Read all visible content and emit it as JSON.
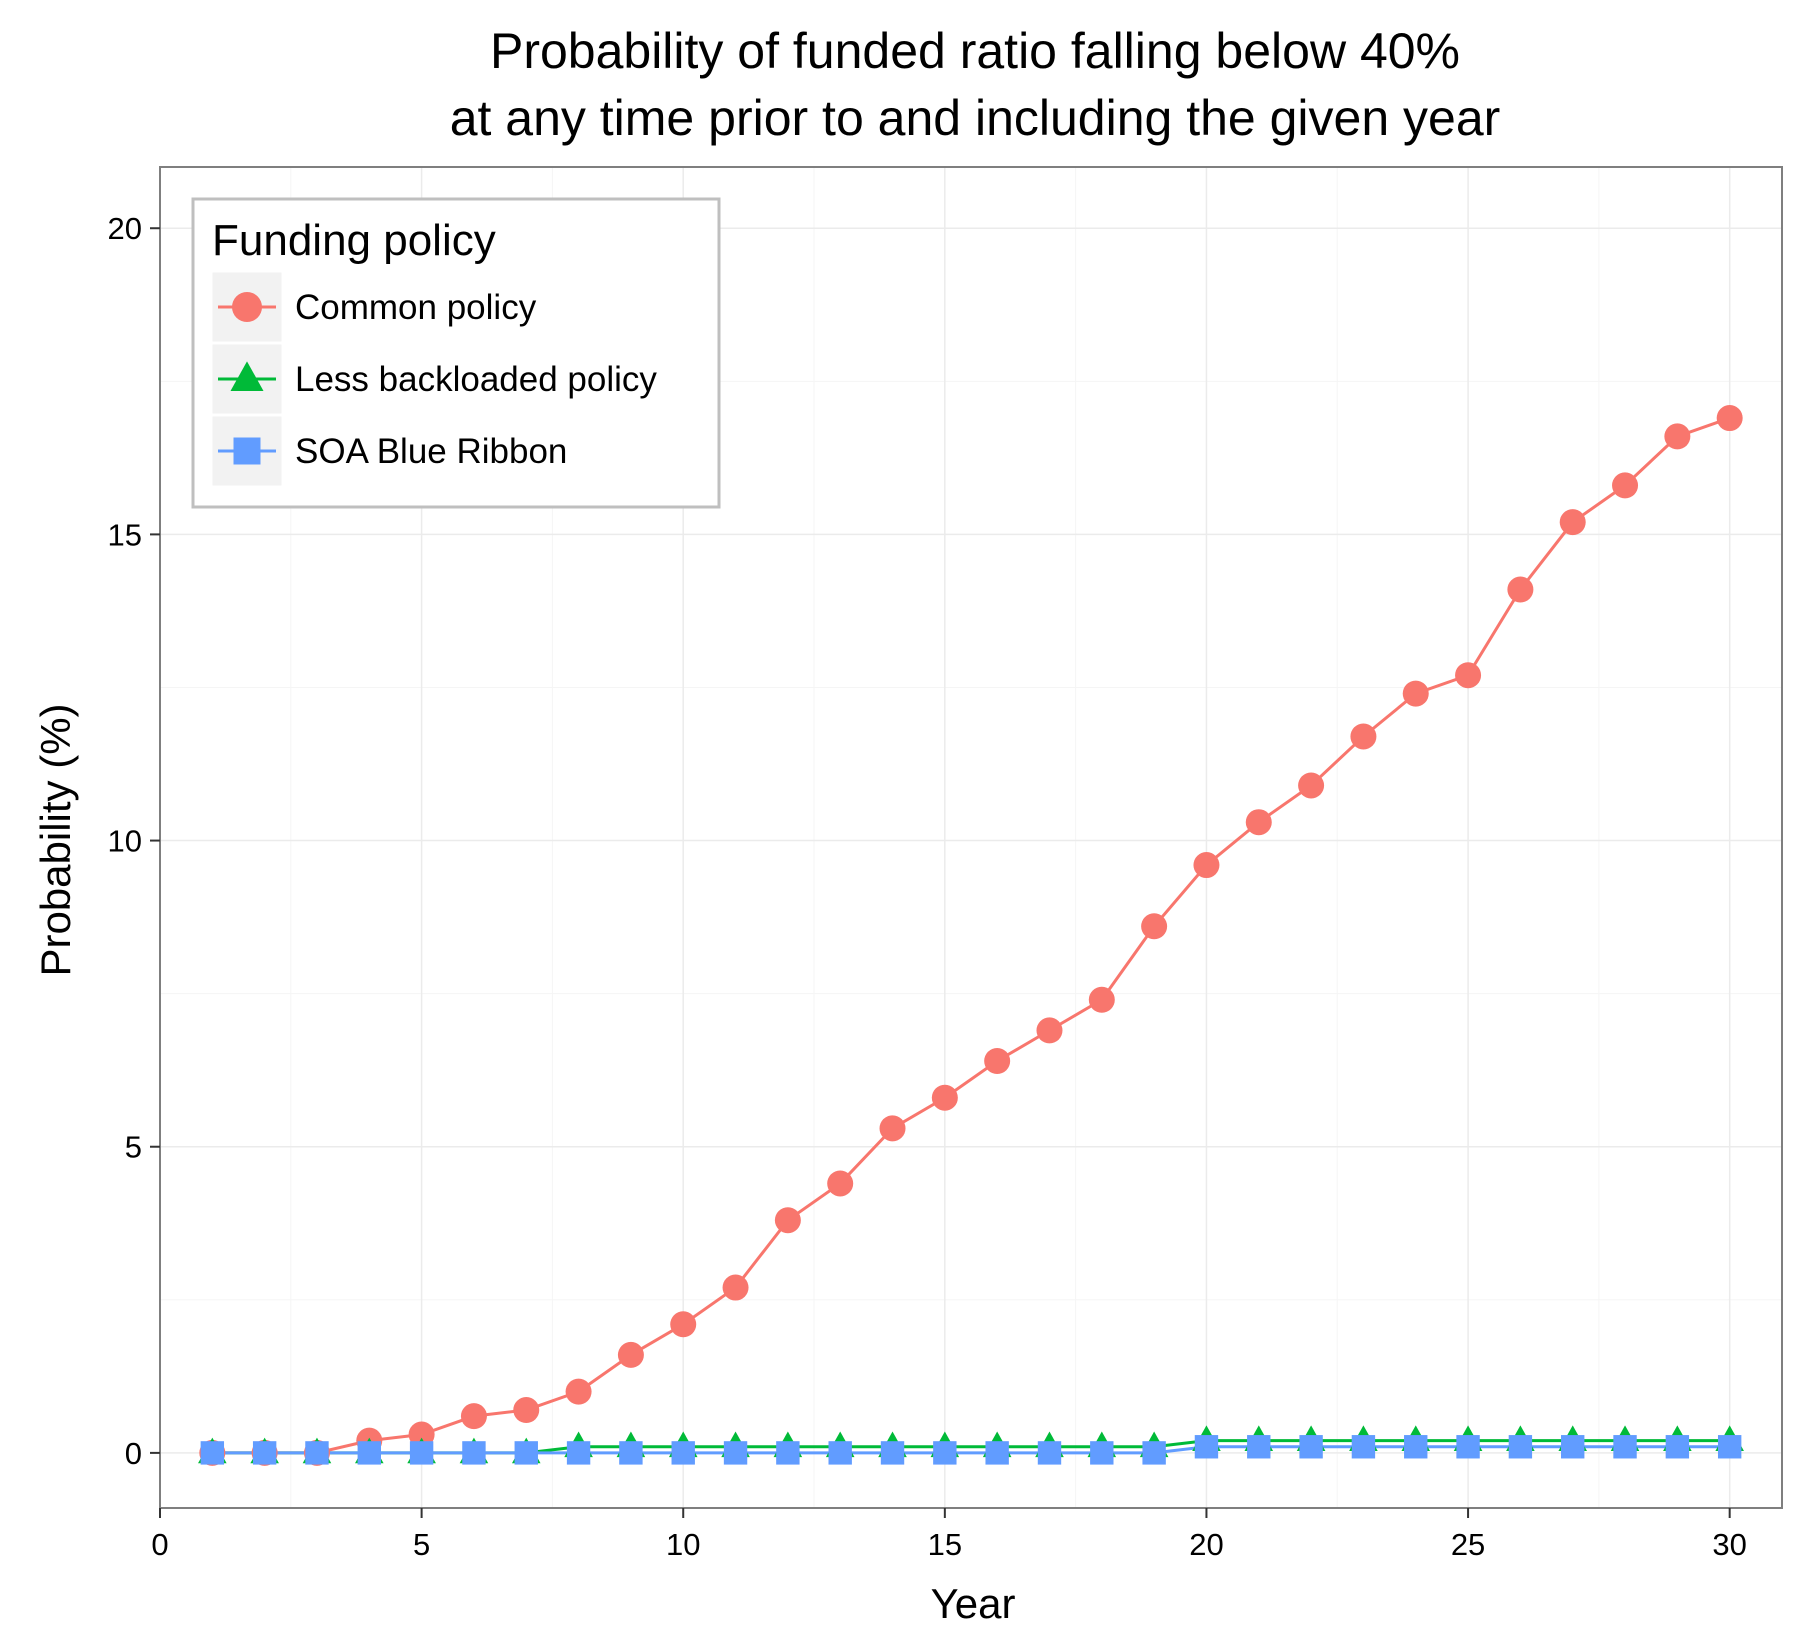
{
  "chart_data": {
    "type": "line",
    "title_line1": "Probability of funded ratio falling below 40%",
    "title_line2": "at any time prior to and including the given year",
    "xlabel": "Year",
    "ylabel": "Probability (%)",
    "xlim": [
      0,
      31
    ],
    "ylim": [
      -0.9,
      21
    ],
    "x_ticks": [
      0,
      5,
      10,
      15,
      20,
      25,
      30
    ],
    "y_ticks": [
      0,
      5,
      10,
      15,
      20
    ],
    "x_tick_labels": [
      "0",
      "5",
      "10",
      "15",
      "20",
      "25",
      "30"
    ],
    "y_tick_labels": [
      "0",
      "5",
      "10",
      "15",
      "20"
    ],
    "grid": true,
    "legend": {
      "title": "Funding policy",
      "placement": "top-left"
    },
    "x": [
      1,
      2,
      3,
      4,
      5,
      6,
      7,
      8,
      9,
      10,
      11,
      12,
      13,
      14,
      15,
      16,
      17,
      18,
      19,
      20,
      21,
      22,
      23,
      24,
      25,
      26,
      27,
      28,
      29,
      30
    ],
    "series": [
      {
        "name": "Common policy",
        "color": "#F8766D",
        "marker": "circle",
        "values": [
          0,
          0,
          0,
          0.2,
          0.3,
          0.6,
          0.7,
          1.0,
          1.6,
          2.1,
          2.7,
          3.8,
          4.4,
          5.3,
          5.8,
          6.4,
          6.9,
          7.4,
          8.6,
          9.6,
          10.3,
          10.9,
          11.7,
          12.4,
          12.7,
          14.1,
          15.2,
          15.8,
          16.6,
          16.9
        ]
      },
      {
        "name": "Less backloaded policy",
        "color": "#00BA38",
        "marker": "triangle",
        "values": [
          0,
          0,
          0,
          0,
          0,
          0,
          0,
          0.1,
          0.1,
          0.1,
          0.1,
          0.1,
          0.1,
          0.1,
          0.1,
          0.1,
          0.1,
          0.1,
          0.1,
          0.2,
          0.2,
          0.2,
          0.2,
          0.2,
          0.2,
          0.2,
          0.2,
          0.2,
          0.2,
          0.2
        ]
      },
      {
        "name": "SOA Blue Ribbon",
        "color": "#619CFF",
        "marker": "square",
        "values": [
          0,
          0,
          0,
          0,
          0,
          0,
          0,
          0,
          0,
          0,
          0,
          0,
          0,
          0,
          0,
          0,
          0,
          0,
          0,
          0.1,
          0.1,
          0.1,
          0.1,
          0.1,
          0.1,
          0.1,
          0.1,
          0.1,
          0.1,
          0.1
        ]
      }
    ],
    "colors": {
      "panel_border": "#7F7F7F",
      "grid_major": "#EBEBEB",
      "grid_minor": "#F5F5F5",
      "legend_border": "#BFBFBF"
    }
  }
}
